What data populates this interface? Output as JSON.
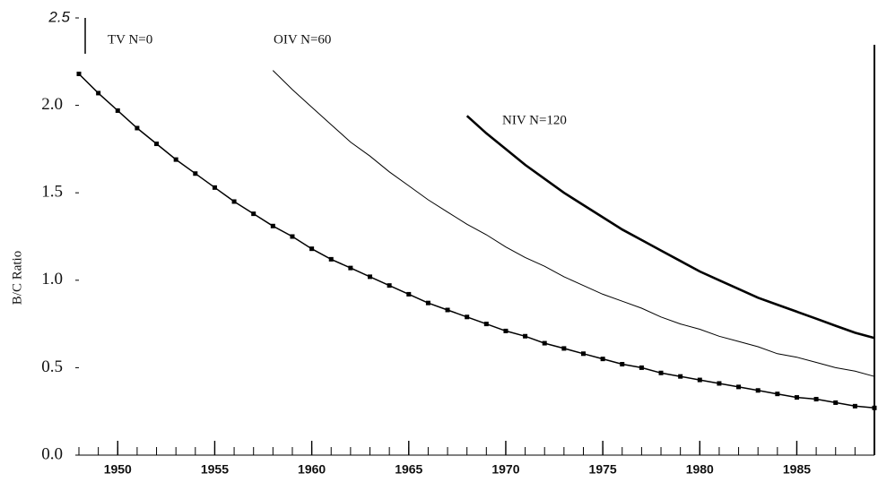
{
  "chart_data": {
    "type": "line",
    "y_label": "B/C Ratio",
    "xlim": [
      1948,
      1989
    ],
    "ylim": [
      0,
      2.5
    ],
    "xticks": [
      1950,
      1955,
      1960,
      1965,
      1970,
      1975,
      1980,
      1985
    ],
    "yticks": [
      {
        "value": 0,
        "label": "0.0"
      },
      {
        "value": 0.5,
        "label": "0.5"
      },
      {
        "value": 1,
        "label": "1.0"
      },
      {
        "value": 1.5,
        "label": "1.5"
      },
      {
        "value": 2,
        "label": "2.0"
      },
      {
        "value": 2.5,
        "label": "2.5"
      }
    ],
    "grid": false,
    "series": [
      {
        "name": "TV N=0",
        "color": "#000000",
        "line_width": 1.5,
        "markers": true,
        "x": [
          1948,
          1949,
          1950,
          1951,
          1952,
          1953,
          1954,
          1955,
          1956,
          1957,
          1958,
          1959,
          1960,
          1961,
          1962,
          1963,
          1964,
          1965,
          1966,
          1967,
          1968,
          1969,
          1970,
          1971,
          1972,
          1973,
          1974,
          1975,
          1976,
          1977,
          1978,
          1979,
          1980,
          1981,
          1982,
          1983,
          1984,
          1985,
          1986,
          1987,
          1988,
          1989
        ],
        "values": [
          2.18,
          2.07,
          1.97,
          1.87,
          1.78,
          1.69,
          1.61,
          1.53,
          1.45,
          1.38,
          1.31,
          1.25,
          1.18,
          1.12,
          1.07,
          1.02,
          0.97,
          0.92,
          0.87,
          0.83,
          0.79,
          0.75,
          0.71,
          0.68,
          0.64,
          0.61,
          0.58,
          0.55,
          0.52,
          0.5,
          0.47,
          0.45,
          0.43,
          0.41,
          0.39,
          0.37,
          0.35,
          0.33,
          0.32,
          0.3,
          0.28,
          0.27
        ]
      },
      {
        "name": "OIV N=60",
        "color": "#000000",
        "line_width": 1,
        "markers": false,
        "x": [
          1958,
          1959,
          1960,
          1961,
          1962,
          1963,
          1964,
          1965,
          1966,
          1967,
          1968,
          1969,
          1970,
          1971,
          1972,
          1973,
          1974,
          1975,
          1976,
          1977,
          1978,
          1979,
          1980,
          1981,
          1982,
          1983,
          1984,
          1985,
          1986,
          1987,
          1988,
          1989
        ],
        "values": [
          2.2,
          2.09,
          1.99,
          1.89,
          1.79,
          1.71,
          1.62,
          1.54,
          1.46,
          1.39,
          1.32,
          1.26,
          1.19,
          1.13,
          1.08,
          1.02,
          0.97,
          0.92,
          0.88,
          0.84,
          0.79,
          0.75,
          0.72,
          0.68,
          0.65,
          0.62,
          0.58,
          0.56,
          0.53,
          0.5,
          0.48,
          0.45
        ]
      },
      {
        "name": "NIV N=120",
        "color": "#000000",
        "line_width": 2.6,
        "markers": false,
        "x": [
          1968,
          1969,
          1970,
          1971,
          1972,
          1973,
          1974,
          1975,
          1976,
          1977,
          1978,
          1979,
          1980,
          1981,
          1982,
          1983,
          1984,
          1985,
          1986,
          1987,
          1988,
          1989
        ],
        "values": [
          1.94,
          1.84,
          1.75,
          1.66,
          1.58,
          1.5,
          1.43,
          1.36,
          1.29,
          1.23,
          1.17,
          1.11,
          1.05,
          1.0,
          0.95,
          0.9,
          0.86,
          0.82,
          0.78,
          0.74,
          0.7,
          0.67
        ]
      }
    ]
  }
}
